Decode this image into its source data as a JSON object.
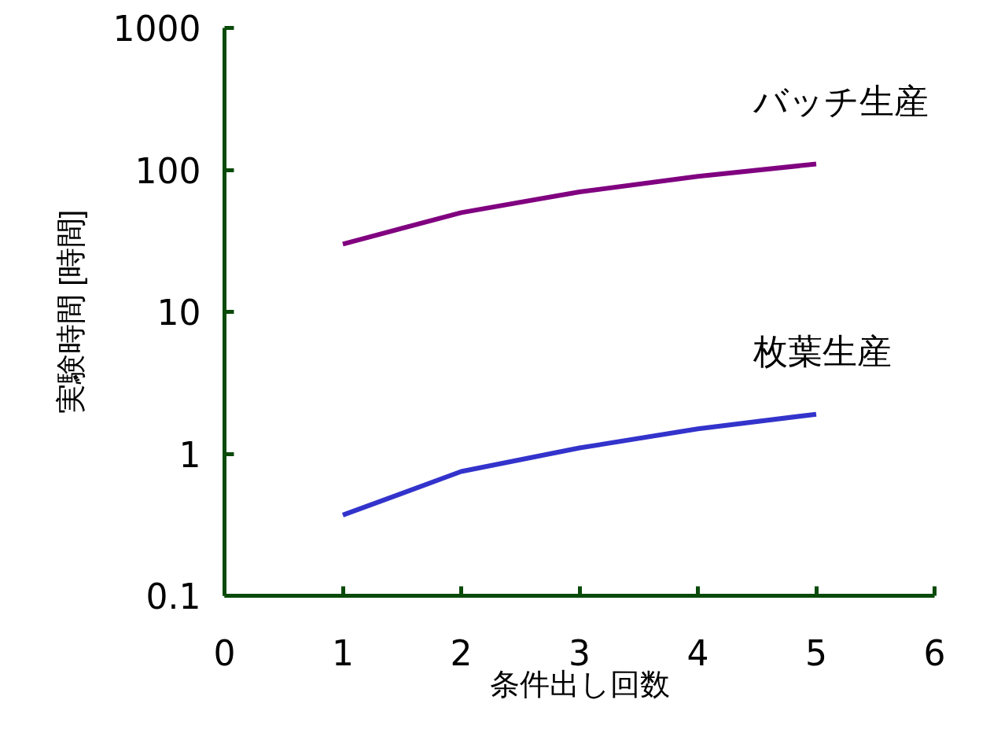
{
  "chart_data": {
    "type": "line",
    "xlabel": "条件出し回数",
    "ylabel": "実験時間 [時間]",
    "x": [
      1,
      2,
      3,
      4,
      5
    ],
    "series": [
      {
        "name": "バッチ生産",
        "color": "#800080",
        "values": [
          30,
          50,
          70,
          90,
          110
        ]
      },
      {
        "name": "枚葉生産",
        "color": "#3333cc",
        "values": [
          0.37,
          0.75,
          1.1,
          1.5,
          1.9
        ]
      }
    ],
    "log": "y",
    "xlim": [
      0,
      6
    ],
    "xticks": [
      0,
      1,
      2,
      3,
      4,
      5,
      6
    ],
    "ylim": [
      0.1,
      1000
    ],
    "yticks": [
      0.1,
      1,
      10,
      100,
      1000
    ],
    "grid": false,
    "marker": "none",
    "line_style": "solid"
  }
}
